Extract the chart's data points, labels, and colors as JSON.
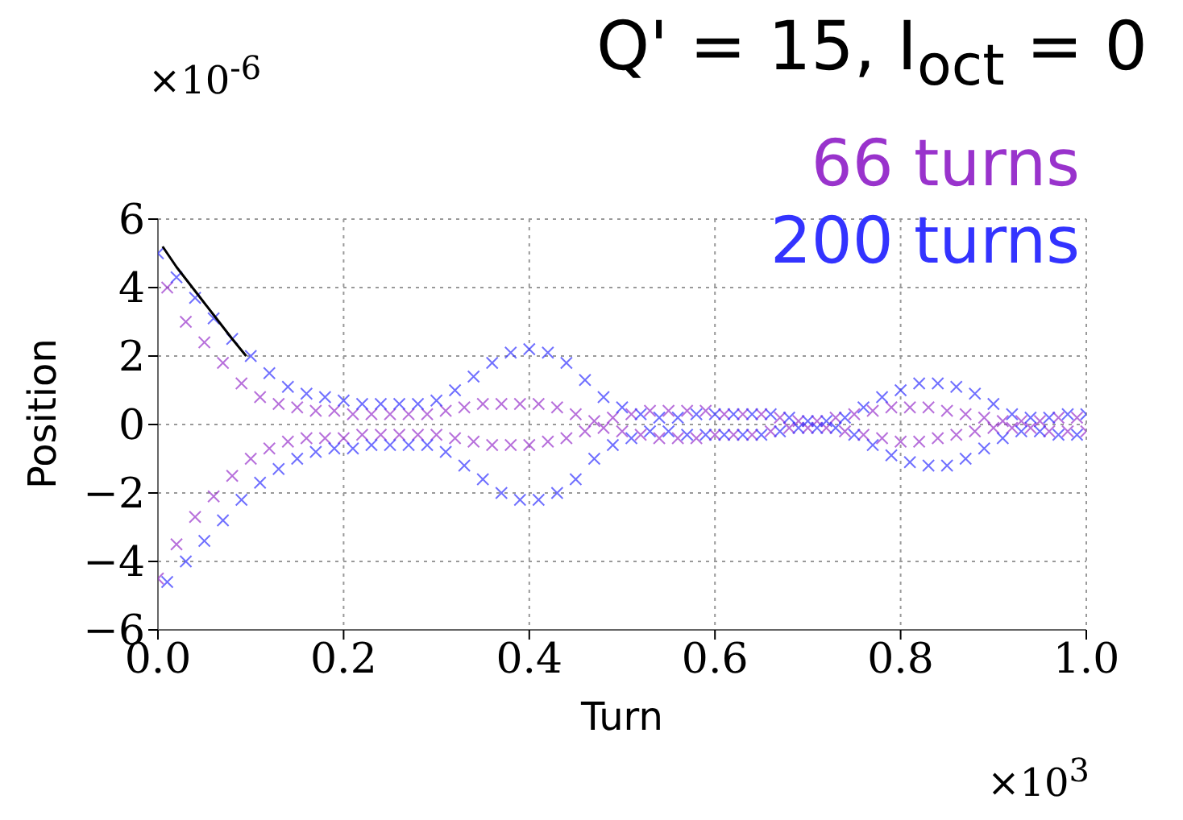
{
  "chart_data": {
    "type": "scatter",
    "title": "Q' = 15, I$_{oct}$ = 0",
    "xlabel": "Turn",
    "ylabel": "Position",
    "annotations": [
      "×10$^{-6}$",
      "×10$^{3}$"
    ],
    "x": [
      0,
      0.01,
      0.02,
      0.03,
      0.04,
      0.05,
      0.06,
      0.07,
      0.08,
      0.09,
      0.1,
      0.11,
      0.12,
      0.13,
      0.14,
      0.15,
      0.16,
      0.17,
      0.18,
      0.19,
      0.2,
      0.21,
      0.22,
      0.23,
      0.24,
      0.25,
      0.26,
      0.27,
      0.28,
      0.29,
      0.3,
      0.31,
      0.32,
      0.33,
      0.34,
      0.35,
      0.36,
      0.37,
      0.38,
      0.39,
      0.4,
      0.41,
      0.42,
      0.43,
      0.44,
      0.45,
      0.46,
      0.47,
      0.48,
      0.49,
      0.5,
      0.51,
      0.52,
      0.53,
      0.54,
      0.55,
      0.56,
      0.57,
      0.58,
      0.59,
      0.6,
      0.61,
      0.62,
      0.63,
      0.64,
      0.65,
      0.66,
      0.67,
      0.68,
      0.69,
      0.7,
      0.71,
      0.72,
      0.73,
      0.74,
      0.75,
      0.76,
      0.77,
      0.78,
      0.79,
      0.8,
      0.81,
      0.82,
      0.83,
      0.84,
      0.85,
      0.86,
      0.87,
      0.88,
      0.89,
      0.9,
      0.91,
      0.92,
      0.93,
      0.94,
      0.95,
      0.96,
      0.97,
      0.98,
      0.99,
      1.0
    ],
    "series": [
      {
        "name": "66 turns",
        "color": "#9933cc",
        "values": [
          -4.5,
          4.0,
          -3.5,
          3.0,
          -2.7,
          2.4,
          -2.1,
          1.8,
          -1.5,
          1.2,
          -1.0,
          0.8,
          -0.7,
          0.6,
          -0.5,
          0.5,
          -0.4,
          0.4,
          -0.4,
          0.4,
          -0.4,
          0.3,
          -0.3,
          0.3,
          -0.3,
          0.3,
          -0.3,
          0.3,
          -0.3,
          0.3,
          -0.3,
          0.4,
          -0.4,
          0.5,
          -0.5,
          0.6,
          -0.6,
          0.6,
          -0.6,
          0.6,
          -0.6,
          0.6,
          -0.5,
          0.5,
          -0.4,
          0.3,
          -0.2,
          0.1,
          -0.1,
          0.2,
          -0.2,
          0.3,
          -0.3,
          0.4,
          -0.4,
          0.4,
          -0.4,
          0.4,
          -0.4,
          0.4,
          -0.3,
          0.3,
          -0.3,
          0.3,
          -0.3,
          0.3,
          -0.2,
          0.2,
          -0.1,
          0.1,
          -0.1,
          0.1,
          -0.1,
          0.2,
          -0.2,
          0.3,
          -0.3,
          0.4,
          -0.4,
          0.5,
          -0.5,
          0.5,
          -0.5,
          0.5,
          -0.4,
          0.4,
          -0.3,
          0.3,
          -0.2,
          0.2,
          -0.1,
          0.1,
          -0.1,
          0.1,
          -0.1,
          0.1,
          -0.2,
          0.2,
          -0.2,
          0.2,
          -0.2
        ]
      },
      {
        "name": "200 turns",
        "color": "#3333ff",
        "values": [
          5.0,
          -4.6,
          4.3,
          -4.0,
          3.7,
          -3.4,
          3.1,
          -2.8,
          2.5,
          -2.2,
          2.0,
          -1.7,
          1.5,
          -1.3,
          1.1,
          -1.0,
          0.9,
          -0.8,
          0.8,
          -0.7,
          0.7,
          -0.7,
          0.6,
          -0.6,
          0.6,
          -0.6,
          0.6,
          -0.6,
          0.6,
          -0.6,
          0.7,
          -0.8,
          1.0,
          -1.2,
          1.4,
          -1.6,
          1.8,
          -2.0,
          2.1,
          -2.2,
          2.2,
          -2.2,
          2.1,
          -2.0,
          1.8,
          -1.6,
          1.3,
          -1.0,
          0.8,
          -0.6,
          0.5,
          -0.4,
          0.3,
          -0.2,
          0.2,
          -0.2,
          0.2,
          -0.3,
          0.3,
          -0.3,
          0.3,
          -0.3,
          0.3,
          -0.3,
          0.3,
          -0.3,
          0.3,
          -0.2,
          0.2,
          -0.1,
          0.1,
          -0.1,
          0.1,
          -0.1,
          0.2,
          -0.3,
          0.5,
          -0.6,
          0.8,
          -0.9,
          1.0,
          -1.1,
          1.2,
          -1.2,
          1.2,
          -1.2,
          1.1,
          -1.0,
          0.9,
          -0.7,
          0.6,
          -0.4,
          0.3,
          -0.2,
          0.2,
          -0.2,
          0.2,
          -0.3,
          0.3,
          -0.3,
          0.3
        ]
      },
      {
        "type": "line",
        "color": "#000000",
        "marker": "none",
        "x": [
          0.005,
          0.02,
          0.04,
          0.06,
          0.08,
          0.095
        ],
        "values": [
          5.2,
          4.6,
          3.9,
          3.2,
          2.5,
          2.0
        ]
      }
    ],
    "marker": "cross",
    "grid": true,
    "legend": "top right",
    "xlim": [
      0,
      1.0
    ],
    "xticks": [
      {
        "value": 0,
        "label": "0.0"
      },
      0.2,
      0.4,
      0.6,
      0.8,
      {
        "value": 1.0,
        "label": "1.0"
      }
    ],
    "ylim": [
      -6,
      6
    ],
    "yticks": [
      {
        "value": -6,
        "label": "−6"
      },
      {
        "value": -4,
        "label": "−4"
      },
      {
        "value": -2,
        "label": "−2"
      },
      0,
      2,
      4,
      6
    ]
  }
}
